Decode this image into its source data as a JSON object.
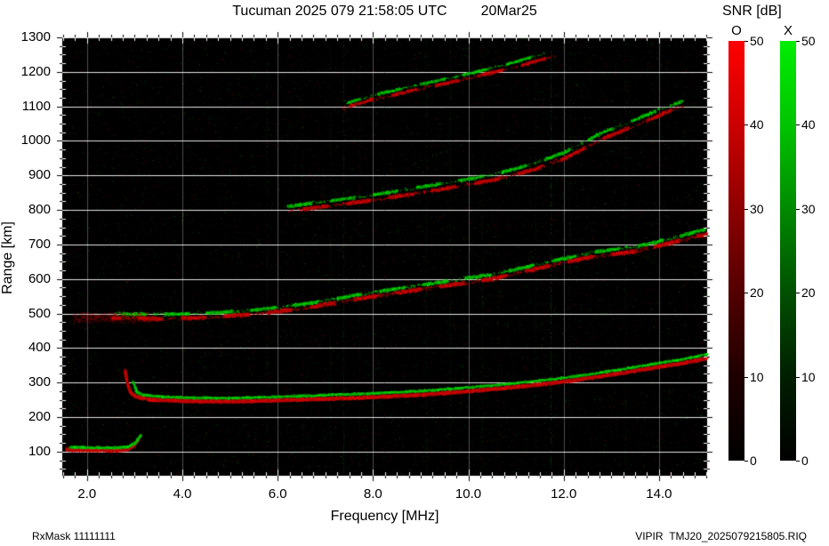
{
  "header": {
    "title": "Tucuman 2025 079 21:58:05 UTC",
    "date": "20Mar25"
  },
  "footer": {
    "left": "RxMask 11111111",
    "right": "VIPIR  TMJ20_2025079215805.RIQ"
  },
  "colorbar": {
    "title": "SNR [dB]",
    "max": 50,
    "ticks": [
      "0",
      "10",
      "20",
      "30",
      "40",
      "50"
    ],
    "tick_values": [
      0,
      10,
      20,
      30,
      40,
      50
    ],
    "bars": [
      {
        "label": "O",
        "mode": "ordinary",
        "stops": [
          "#ff0000",
          "#cc0000",
          "#8e0000",
          "#520000",
          "#1e0000",
          "#000000"
        ]
      },
      {
        "label": "X",
        "mode": "extraordinary",
        "stops": [
          "#00ee00",
          "#00c400",
          "#008a00",
          "#005000",
          "#001e00",
          "#000000"
        ]
      }
    ]
  },
  "chart_data": {
    "type": "heatmap",
    "title": "Tucuman ionogram 2025-079 21:58:05 UTC",
    "xlabel": "Frequency [MHz]",
    "ylabel": "Range [km]",
    "xlim": [
      1.48,
      15.01
    ],
    "ylim": [
      30,
      1300
    ],
    "x_major": 2.0,
    "x_minor": 0.25,
    "y_major": 100,
    "y_minor": 25,
    "grid": {
      "h_color": "rgba(255,255,255,0.9)",
      "v_color": "rgba(255,255,255,0.30)"
    },
    "noise": {
      "count": 20000
    },
    "x_ticks": [
      {
        "v": 2,
        "label": "2.0"
      },
      {
        "v": 4,
        "label": "4.0"
      },
      {
        "v": 6,
        "label": "6.0"
      },
      {
        "v": 8,
        "label": "8.0"
      },
      {
        "v": 10,
        "label": "10.0"
      },
      {
        "v": 12,
        "label": "12.0"
      },
      {
        "v": 14,
        "label": "14.0"
      }
    ],
    "y_ticks": [
      {
        "v": 100,
        "label": "100"
      },
      {
        "v": 200,
        "label": "200"
      },
      {
        "v": 300,
        "label": "300"
      },
      {
        "v": 400,
        "label": "400"
      },
      {
        "v": 500,
        "label": "500"
      },
      {
        "v": 600,
        "label": "600"
      },
      {
        "v": 700,
        "label": "700"
      },
      {
        "v": 800,
        "label": "800"
      },
      {
        "v": 900,
        "label": "900"
      },
      {
        "v": 1000,
        "label": "1000"
      },
      {
        "v": 1100,
        "label": "1100"
      },
      {
        "v": 1200,
        "label": "1200"
      },
      {
        "v": 1300,
        "label": "1300"
      }
    ],
    "rfi_lines": [
      {
        "f": 5.78,
        "color": "green",
        "alpha": 0.1
      },
      {
        "f": 6.52,
        "color": "red",
        "alpha": 0.08
      },
      {
        "f": 7.1,
        "color": "green",
        "alpha": 0.1
      },
      {
        "f": 7.38,
        "color": "green",
        "alpha": 0.16
      },
      {
        "f": 7.72,
        "color": "red",
        "alpha": 0.1
      },
      {
        "f": 9.12,
        "color": "green",
        "alpha": 0.1
      },
      {
        "f": 9.62,
        "color": "green",
        "alpha": 0.12
      },
      {
        "f": 10.28,
        "color": "green",
        "alpha": 0.1
      },
      {
        "f": 10.62,
        "color": "red",
        "alpha": 0.08
      },
      {
        "f": 11.4,
        "color": "green",
        "alpha": 0.08
      },
      {
        "f": 11.72,
        "color": "green",
        "alpha": 0.22
      },
      {
        "f": 12.12,
        "color": "green",
        "alpha": 0.1
      },
      {
        "f": 13.3,
        "color": "green",
        "alpha": 0.09
      }
    ],
    "traces": [
      {
        "name": "E-layer-O",
        "color": "red",
        "width": 2.6,
        "density": 1.6,
        "points": [
          [
            1.55,
            107
          ],
          [
            2.0,
            106
          ],
          [
            2.5,
            105
          ],
          [
            2.8,
            107
          ],
          [
            2.95,
            116
          ],
          [
            3.08,
            138
          ]
        ]
      },
      {
        "name": "E-layer-X",
        "color": "green",
        "width": 1.8,
        "density": 1.4,
        "points": [
          [
            1.62,
            114
          ],
          [
            2.05,
            113
          ],
          [
            2.55,
            112
          ],
          [
            2.85,
            115
          ],
          [
            3.0,
            126
          ],
          [
            3.12,
            150
          ]
        ]
      },
      {
        "name": "F-1hop-O",
        "color": "red",
        "width": 2.4,
        "density": 1.8,
        "points": [
          [
            2.78,
            338
          ],
          [
            2.83,
            300
          ],
          [
            2.9,
            272
          ],
          [
            3.0,
            261
          ],
          [
            3.3,
            252
          ],
          [
            4.0,
            248
          ],
          [
            5.0,
            246
          ],
          [
            6.0,
            250
          ],
          [
            7.0,
            254
          ],
          [
            8.0,
            259
          ],
          [
            9.0,
            266
          ],
          [
            10.0,
            276
          ],
          [
            10.8,
            286
          ],
          [
            11.5,
            296
          ],
          [
            12.1,
            306
          ],
          [
            12.7,
            318
          ],
          [
            13.3,
            331
          ],
          [
            13.9,
            345
          ],
          [
            14.5,
            358
          ],
          [
            15.0,
            372
          ]
        ]
      },
      {
        "name": "F-1hop-X",
        "color": "green",
        "width": 1.7,
        "density": 1.2,
        "points": [
          [
            2.96,
            305
          ],
          [
            3.02,
            275
          ],
          [
            3.15,
            266
          ],
          [
            3.5,
            261
          ],
          [
            4.0,
            258
          ],
          [
            5.0,
            256
          ],
          [
            6.0,
            260
          ],
          [
            7.0,
            265
          ],
          [
            8.0,
            270
          ],
          [
            9.0,
            277
          ],
          [
            10.0,
            287
          ],
          [
            10.8,
            297
          ],
          [
            11.5,
            307
          ],
          [
            12.1,
            317
          ],
          [
            12.7,
            329
          ],
          [
            13.3,
            342
          ],
          [
            13.9,
            356
          ],
          [
            14.5,
            369
          ],
          [
            15.0,
            384
          ]
        ]
      },
      {
        "name": "F-2hop-O",
        "color": "red",
        "width": 2.8,
        "density": 1.0,
        "patchy": true,
        "phase": 0.0,
        "points": [
          [
            2.5,
            488
          ],
          [
            3.5,
            486
          ],
          [
            4.5,
            490
          ],
          [
            5.5,
            500
          ],
          [
            6.5,
            516
          ],
          [
            7.5,
            540
          ],
          [
            8.5,
            562
          ],
          [
            9.5,
            582
          ],
          [
            10.5,
            602
          ],
          [
            11.5,
            634
          ],
          [
            12.5,
            664
          ],
          [
            13.5,
            682
          ],
          [
            14.2,
            705
          ],
          [
            15.0,
            732
          ]
        ]
      },
      {
        "name": "F-2hop-X",
        "color": "green",
        "width": 2.3,
        "density": 0.9,
        "patchy": true,
        "phase": 2.4,
        "points": [
          [
            2.6,
            500
          ],
          [
            3.6,
            499
          ],
          [
            4.6,
            503
          ],
          [
            5.6,
            513
          ],
          [
            6.6,
            530
          ],
          [
            7.6,
            554
          ],
          [
            8.6,
            576
          ],
          [
            9.6,
            596
          ],
          [
            10.6,
            617
          ],
          [
            11.6,
            649
          ],
          [
            12.6,
            679
          ],
          [
            13.6,
            698
          ],
          [
            14.3,
            721
          ],
          [
            15.0,
            747
          ]
        ]
      },
      {
        "name": "F-3hop-O",
        "color": "red",
        "width": 2.6,
        "density": 0.9,
        "patchy": true,
        "phase": 1.1,
        "points": [
          [
            6.2,
            798
          ],
          [
            7.0,
            812
          ],
          [
            8.0,
            830
          ],
          [
            9.0,
            852
          ],
          [
            9.8,
            870
          ],
          [
            10.5,
            888
          ],
          [
            11.3,
            916
          ],
          [
            12.0,
            950
          ],
          [
            12.8,
            1008
          ],
          [
            13.5,
            1046
          ],
          [
            14.1,
            1082
          ],
          [
            14.5,
            1102
          ]
        ]
      },
      {
        "name": "F-3hop-X",
        "color": "green",
        "width": 2.2,
        "density": 0.8,
        "patchy": true,
        "phase": 3.4,
        "points": [
          [
            6.2,
            812
          ],
          [
            7.0,
            826
          ],
          [
            8.0,
            845
          ],
          [
            9.0,
            868
          ],
          [
            9.8,
            886
          ],
          [
            10.5,
            904
          ],
          [
            11.3,
            933
          ],
          [
            12.0,
            968
          ],
          [
            12.8,
            1026
          ],
          [
            13.5,
            1064
          ],
          [
            14.1,
            1098
          ],
          [
            14.5,
            1118
          ]
        ]
      },
      {
        "name": "F-4hop-O",
        "color": "red",
        "width": 2.4,
        "density": 0.85,
        "patchy": true,
        "phase": 0.6,
        "points": [
          [
            7.35,
            1096
          ],
          [
            8.0,
            1122
          ],
          [
            9.0,
            1153
          ],
          [
            10.0,
            1183
          ],
          [
            11.0,
            1216
          ],
          [
            11.8,
            1248
          ]
        ]
      },
      {
        "name": "F-4hop-X",
        "color": "green",
        "width": 2.0,
        "density": 0.8,
        "patchy": true,
        "phase": 2.8,
        "points": [
          [
            7.45,
            1112
          ],
          [
            8.1,
            1138
          ],
          [
            9.1,
            1169
          ],
          [
            10.1,
            1199
          ],
          [
            11.0,
            1232
          ],
          [
            11.6,
            1255
          ]
        ]
      },
      {
        "name": "2hop-leading-spread",
        "color": "red",
        "width": 7,
        "density": 0.35,
        "alpha": 0.35,
        "points": [
          [
            1.7,
            487
          ],
          [
            2.5,
            490
          ],
          [
            3.3,
            488
          ]
        ]
      }
    ]
  }
}
